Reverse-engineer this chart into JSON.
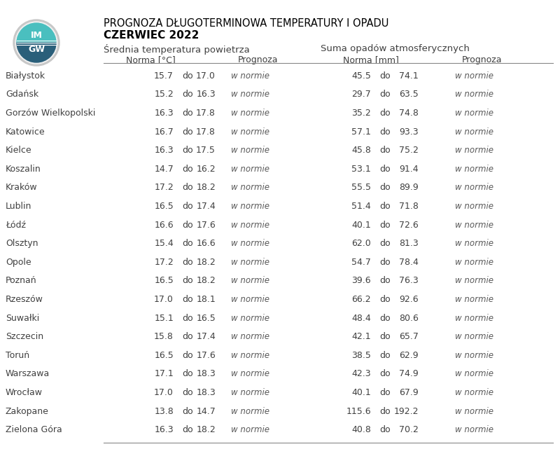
{
  "title_line1": "PROGNOZA DŁUGOTERMINOWA TEMPERATURY I OPADU",
  "title_line2": "CZERWIEC 2022",
  "col_header1": "Średnia temperatura powietrza",
  "col_header2": "Suma opadów atmosferycznych",
  "sub_header_norma_temp": "Norma [°C]",
  "sub_header_prognoza": "Prognoza",
  "sub_header_norma_opad": "Norma [mm]",
  "sub_header_prognoza2": "Prognoza",
  "cities": [
    "Białystok",
    "Gdańsk",
    "Gorzów Wielkopolski",
    "Katowice",
    "Kielce",
    "Koszalin",
    "Kraków",
    "Lublin",
    "Łódź",
    "Olsztyn",
    "Opole",
    "Poznań",
    "Rzeszów",
    "Suwałki",
    "Szczecin",
    "Toruń",
    "Warszawa",
    "Wrocław",
    "Zakopane",
    "Zielona Góra"
  ],
  "temp_low": [
    15.7,
    15.2,
    16.3,
    16.7,
    16.3,
    14.7,
    17.2,
    16.5,
    16.6,
    15.4,
    17.2,
    16.5,
    17.0,
    15.1,
    15.8,
    16.5,
    17.1,
    17.0,
    13.8,
    16.3
  ],
  "temp_high": [
    17.0,
    16.3,
    17.8,
    17.8,
    17.5,
    16.2,
    18.2,
    17.4,
    17.6,
    16.6,
    18.2,
    18.2,
    18.1,
    16.5,
    17.4,
    17.6,
    18.3,
    18.3,
    14.7,
    18.2
  ],
  "prec_low": [
    45.5,
    29.7,
    35.2,
    57.1,
    45.8,
    53.1,
    55.5,
    51.4,
    40.1,
    62.0,
    54.7,
    39.6,
    66.2,
    48.4,
    42.1,
    38.5,
    42.3,
    40.1,
    115.6,
    40.8
  ],
  "prec_high": [
    74.1,
    63.5,
    74.8,
    93.3,
    75.2,
    91.4,
    89.9,
    71.8,
    72.6,
    81.3,
    78.4,
    76.3,
    92.6,
    80.6,
    65.7,
    62.9,
    74.9,
    67.9,
    192.2,
    70.2
  ],
  "temp_prognoza": "w normie",
  "prec_prognoza": "w normie",
  "bg_color": "#ffffff",
  "text_color": "#404040",
  "header_color": "#000000",
  "prognoza_color": "#595959",
  "line_color": "#888888",
  "logo_color1": "#4bbfbf",
  "logo_color2": "#2a6e8a"
}
